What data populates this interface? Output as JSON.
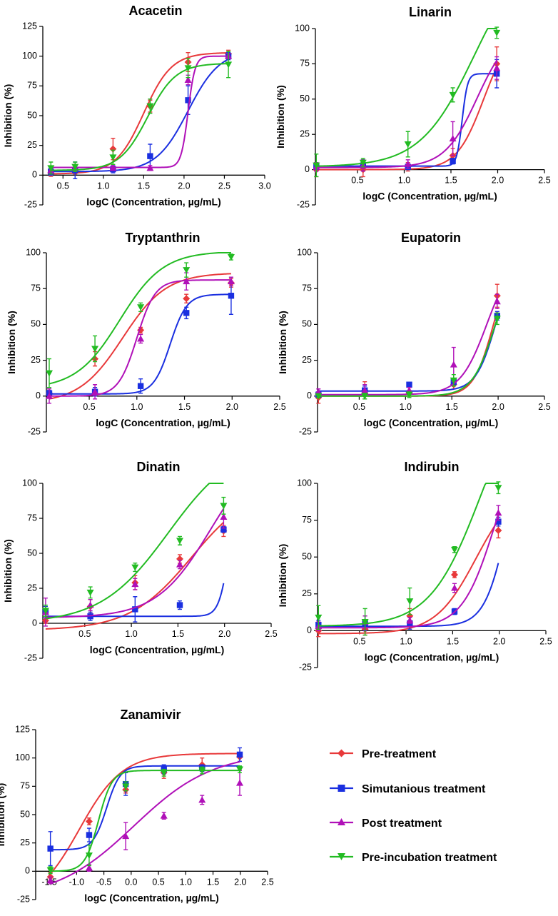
{
  "legend": [
    {
      "key": "pre",
      "label": "Pre-treatment",
      "color": "#e8393a",
      "marker": "diamond"
    },
    {
      "key": "sim",
      "label": "Simutanious treatment",
      "color": "#1a2fe0",
      "marker": "square"
    },
    {
      "key": "post",
      "label": "Post treatment",
      "color": "#b010b8",
      "marker": "triangle-up"
    },
    {
      "key": "preinc",
      "label": "Pre-incubation treatment",
      "color": "#22bb22",
      "marker": "triangle-down"
    }
  ],
  "chart_data": [
    {
      "type": "scatter",
      "fit": "sigmoid",
      "title": "Acacetin",
      "xlabel": "logC (Concentration, µg/mL)",
      "ylabel": "Inhibition (%)",
      "xlim": [
        0.25,
        3.0
      ],
      "ylim": [
        -25,
        125
      ],
      "xticks": [
        0.5,
        1.0,
        1.5,
        2.0,
        2.5,
        3.0
      ],
      "xtick_labels": [
        "0.5",
        "1.0",
        "1.5",
        "2.0",
        "2.5",
        "3.0"
      ],
      "yticks": [
        -25,
        0,
        25,
        50,
        75,
        100,
        125
      ],
      "ytick_labels": [
        "-25",
        "0",
        "25",
        "50",
        "75",
        "100",
        "125"
      ],
      "x": [
        0.35,
        0.65,
        1.12,
        1.58,
        2.05,
        2.55
      ],
      "series": [
        {
          "name": "Pre-treatment",
          "values": [
            2,
            5,
            22,
            58,
            95,
            102
          ],
          "errors": [
            3,
            4,
            9,
            5,
            8,
            3
          ],
          "fit": {
            "bottom": 1,
            "top": 103,
            "logec50": 1.5,
            "hill": 2.5
          }
        },
        {
          "name": "Simutanious treatment",
          "values": [
            3,
            4,
            5,
            16,
            63,
            100
          ],
          "errors": [
            3,
            7,
            3,
            10,
            12,
            3
          ],
          "fit": {
            "bottom": 3,
            "top": 105,
            "logec50": 2.05,
            "hill": 2.2
          }
        },
        {
          "name": "Post treatment",
          "values": [
            4,
            6,
            6,
            6,
            80,
            100
          ],
          "errors": [
            2,
            2,
            2,
            2,
            4,
            2
          ],
          "fit": {
            "bottom": 6.5,
            "top": 100,
            "logec50": 2.05,
            "hill": 10
          }
        },
        {
          "name": "Pre-incubation treatment",
          "values": [
            6,
            7,
            15,
            58,
            90,
            93
          ],
          "errors": [
            5,
            4,
            6,
            6,
            8,
            11
          ],
          "fit": {
            "bottom": 4,
            "top": 94,
            "logec50": 1.55,
            "hill": 2.5
          }
        }
      ]
    },
    {
      "type": "scatter",
      "fit": "sigmoid",
      "title": "Linarin",
      "xlabel": "logC (Concentration, µg/mL)",
      "ylabel": "Inhibition (%)",
      "xlim": [
        0.05,
        2.5
      ],
      "ylim": [
        -25,
        100
      ],
      "xticks": [
        0.5,
        1.0,
        1.5,
        2.0,
        2.5
      ],
      "xtick_labels": [
        "0.5",
        "1.0",
        "1.5",
        "2.0",
        "2.5"
      ],
      "yticks": [
        -25,
        0,
        25,
        50,
        75,
        100
      ],
      "ytick_labels": [
        "-25",
        "0",
        "25",
        "50",
        "75",
        "100"
      ],
      "x": [
        0.06,
        0.56,
        1.04,
        1.52,
        1.99
      ],
      "series": [
        {
          "name": "Pre-treatment",
          "values": [
            0,
            0,
            2,
            10,
            75
          ],
          "errors": [
            5,
            5,
            3,
            5,
            12
          ],
          "fit": {
            "bottom": 0,
            "top": 100,
            "logec50": 1.85,
            "hill": 3
          }
        },
        {
          "name": "Simutanious treatment",
          "values": [
            2,
            3,
            2,
            6,
            68
          ],
          "errors": [
            3,
            4,
            2,
            2,
            10
          ],
          "fit": {
            "bottom": 2.5,
            "top": 68,
            "logec50": 1.62,
            "hill": 15
          }
        },
        {
          "name": "Post treatment",
          "values": [
            2,
            3,
            4,
            22,
            72
          ],
          "errors": [
            3,
            4,
            3,
            12,
            8
          ],
          "fit": {
            "bottom": 1.5,
            "top": 100,
            "logec50": 1.78,
            "hill": 2.5
          }
        },
        {
          "name": "Pre-incubation treatment",
          "values": [
            3,
            5,
            18,
            53,
            97
          ],
          "errors": [
            8,
            3,
            9,
            5,
            4
          ],
          "fit": {
            "bottom": 2,
            "top": 160,
            "logec50": 1.75,
            "hill": 1.5
          }
        }
      ]
    },
    {
      "type": "scatter",
      "fit": "sigmoid",
      "title": "Tryptanthrin",
      "xlabel": "logC (Concentration, µg/mL)",
      "ylabel": "Inhibition (%)",
      "xlim": [
        0.05,
        2.5
      ],
      "ylim": [
        -25,
        100
      ],
      "xticks": [
        0.5,
        1.0,
        1.5,
        2.0,
        2.5
      ],
      "xtick_labels": [
        "0.5",
        "1.0",
        "1.5",
        "2.0",
        "2.5"
      ],
      "yticks": [
        -25,
        0,
        25,
        50,
        75,
        100
      ],
      "ytick_labels": [
        "-25",
        "0",
        "25",
        "50",
        "75",
        "100"
      ],
      "x": [
        0.08,
        0.56,
        1.04,
        1.52,
        1.99
      ],
      "series": [
        {
          "name": "Pre-treatment",
          "values": [
            2,
            26,
            46,
            68,
            79
          ],
          "errors": [
            3,
            5,
            2,
            3,
            3
          ],
          "fit": {
            "bottom": -5,
            "top": 86,
            "logec50": 0.85,
            "hill": 1.9
          }
        },
        {
          "name": "Simutanious treatment",
          "values": [
            2,
            3,
            7,
            58,
            70
          ],
          "errors": [
            2,
            3,
            5,
            4,
            13
          ],
          "fit": {
            "bottom": 1.5,
            "top": 71,
            "logec50": 1.35,
            "hill": 5
          }
        },
        {
          "name": "Post treatment",
          "values": [
            0,
            3,
            40,
            80,
            80
          ],
          "errors": [
            5,
            5,
            3,
            6,
            3
          ],
          "fit": {
            "bottom": 0,
            "top": 81,
            "logec50": 1.0,
            "hill": 4.5
          }
        },
        {
          "name": "Pre-incubation treatment",
          "values": [
            16,
            33,
            62,
            88,
            97
          ],
          "errors": [
            10,
            9,
            3,
            5,
            2
          ],
          "fit": {
            "bottom": 5,
            "top": 101,
            "logec50": 0.82,
            "hill": 1.9
          }
        }
      ]
    },
    {
      "type": "scatter",
      "fit": "sigmoid",
      "title": "Eupatorin",
      "xlabel": "logC (Concentration, µg/mL)",
      "ylabel": "Inhibition (%)",
      "xlim": [
        0.05,
        2.5
      ],
      "ylim": [
        -25,
        100
      ],
      "xticks": [
        0.5,
        1.0,
        1.5,
        2.0,
        2.5
      ],
      "xtick_labels": [
        "0.5",
        "1.0",
        "1.5",
        "2.0",
        "2.5"
      ],
      "yticks": [
        -25,
        0,
        25,
        50,
        75,
        100
      ],
      "ytick_labels": [
        "-25",
        "0",
        "25",
        "50",
        "75",
        "100"
      ],
      "x": [
        0.06,
        0.56,
        1.04,
        1.52,
        1.99
      ],
      "series": [
        {
          "name": "Pre-treatment",
          "values": [
            -1,
            4,
            2,
            8,
            70
          ],
          "errors": [
            4,
            6,
            2,
            3,
            8
          ],
          "fit": {
            "bottom": 0,
            "top": 100,
            "logec50": 1.95,
            "hill": 4
          }
        },
        {
          "name": "Simutanious treatment",
          "values": [
            1,
            4,
            8,
            10,
            56
          ],
          "errors": [
            2,
            3,
            1,
            2,
            3
          ],
          "fit": {
            "bottom": 3.5,
            "top": 100,
            "logec50": 1.98,
            "hill": 4
          }
        },
        {
          "name": "Post treatment",
          "values": [
            3,
            4,
            4,
            22,
            66
          ],
          "errors": [
            2,
            4,
            2,
            12,
            5
          ],
          "fit": {
            "bottom": 1,
            "top": 100,
            "logec50": 1.88,
            "hill": 3
          }
        },
        {
          "name": "Pre-incubation treatment",
          "values": [
            0,
            0,
            1,
            11,
            54
          ],
          "errors": [
            1,
            2,
            2,
            4,
            4
          ],
          "fit": {
            "bottom": 0,
            "top": 100,
            "logec50": 1.97,
            "hill": 3.5
          }
        }
      ]
    },
    {
      "type": "scatter",
      "fit": "sigmoid",
      "title": "Dinatin",
      "xlabel": "logC (Concentration, µg/mL)",
      "ylabel": "Inhibition (%)",
      "xlim": [
        0.05,
        2.5
      ],
      "ylim": [
        -25,
        100
      ],
      "xticks": [
        0.5,
        1.0,
        1.5,
        2.0,
        2.5
      ],
      "xtick_labels": [
        "0.5",
        "1.0",
        "1.5",
        "2.0",
        "2.5"
      ],
      "yticks": [
        -25,
        0,
        25,
        50,
        75,
        100
      ],
      "ytick_labels": [
        "-25",
        "0",
        "25",
        "50",
        "75",
        "100"
      ],
      "x": [
        0.08,
        0.56,
        1.04,
        1.52,
        1.99
      ],
      "series": [
        {
          "name": "Pre-treatment",
          "values": [
            2,
            12,
            29,
            46,
            66
          ],
          "errors": [
            2,
            5,
            5,
            3,
            4
          ],
          "fit": {
            "bottom": -5,
            "top": 100,
            "logec50": 1.65,
            "hill": 1.3
          }
        },
        {
          "name": "Simutanious treatment",
          "values": [
            8,
            5,
            10,
            13,
            67
          ],
          "errors": [
            4,
            3,
            9,
            3,
            2
          ],
          "fit": {
            "bottom": 5,
            "top": 100,
            "logec50": 2.05,
            "hill": 8
          }
        },
        {
          "name": "Post treatment",
          "values": [
            8,
            13,
            28,
            42,
            76
          ],
          "errors": [
            10,
            4,
            4,
            3,
            8
          ],
          "fit": {
            "bottom": 4,
            "top": 130,
            "logec50": 1.85,
            "hill": 1.5
          }
        },
        {
          "name": "Pre-incubation treatment",
          "values": [
            9,
            22,
            40,
            59,
            84
          ],
          "errors": [
            4,
            4,
            3,
            3,
            6
          ],
          "fit": {
            "bottom": 0,
            "top": 130,
            "logec50": 1.4,
            "hill": 1.2
          }
        }
      ]
    },
    {
      "type": "scatter",
      "fit": "sigmoid",
      "title": "Indirubin",
      "xlabel": "logC (Concentration, µg/mL)",
      "ylabel": "Inhibition (%)",
      "xlim": [
        0.05,
        2.5
      ],
      "ylim": [
        -25,
        100
      ],
      "xticks": [
        0.5,
        1.0,
        1.5,
        2.0,
        2.5
      ],
      "xtick_labels": [
        "0.5",
        "1.0",
        "1.5",
        "2.0",
        "2.5"
      ],
      "yticks": [
        -25,
        0,
        25,
        50,
        75,
        100
      ],
      "ytick_labels": [
        "-25",
        "0",
        "25",
        "50",
        "75",
        "100"
      ],
      "x": [
        0.06,
        0.56,
        1.04,
        1.52,
        1.99
      ],
      "series": [
        {
          "name": "Pre-treatment",
          "values": [
            0,
            1,
            10,
            38,
            68
          ],
          "errors": [
            4,
            4,
            5,
            2,
            5
          ],
          "fit": {
            "bottom": -2,
            "top": 100,
            "logec50": 1.75,
            "hill": 2
          }
        },
        {
          "name": "Simutanious treatment",
          "values": [
            4,
            5,
            5,
            13,
            74
          ],
          "errors": [
            3,
            5,
            4,
            2,
            3
          ],
          "fit": {
            "bottom": 3,
            "top": 150,
            "logec50": 2.1,
            "hill": 3.5
          }
        },
        {
          "name": "Post treatment",
          "values": [
            3,
            6,
            7,
            29,
            80
          ],
          "errors": [
            3,
            4,
            2,
            3,
            5
          ],
          "fit": {
            "bottom": 2,
            "top": 140,
            "logec50": 1.95,
            "hill": 2.5
          }
        },
        {
          "name": "Pre-incubation treatment",
          "values": [
            9,
            6,
            20,
            55,
            97
          ],
          "errors": [
            8,
            9,
            9,
            2,
            4
          ],
          "fit": {
            "bottom": 3,
            "top": 180,
            "logec50": 1.8,
            "hill": 1.6
          }
        }
      ]
    },
    {
      "type": "scatter",
      "fit": "sigmoid",
      "title": "Zanamivir",
      "xlabel": "logC (Concentration, µg/mL)",
      "ylabel": "Inhibition (%)",
      "xlim": [
        -1.75,
        2.5
      ],
      "ylim": [
        -25,
        125
      ],
      "xticks": [
        -1.5,
        -1.0,
        -0.5,
        0.0,
        0.5,
        1.0,
        1.5,
        2.0,
        2.5
      ],
      "xtick_labels": [
        "-1.5",
        "-1.0",
        "-0.5",
        "0.0",
        "0.5",
        "1.0",
        "1.5",
        "2.0",
        "2.5"
      ],
      "yticks": [
        -25,
        0,
        25,
        50,
        75,
        100,
        125
      ],
      "ytick_labels": [
        "-25",
        "0",
        "25",
        "50",
        "75",
        "100",
        "125"
      ],
      "x": [
        -1.48,
        -0.77,
        -0.1,
        0.6,
        1.3,
        1.99
      ],
      "series": [
        {
          "name": "Pre-treatment",
          "values": [
            -5,
            44,
            72,
            87,
            94,
            101
          ],
          "errors": [
            4,
            3,
            3,
            5,
            6,
            4
          ],
          "fit": {
            "bottom": -30,
            "top": 104,
            "logec50": -0.95,
            "hill": 1.1
          }
        },
        {
          "name": "Simutanious treatment",
          "values": [
            20,
            32,
            77,
            90,
            91,
            103
          ],
          "errors": [
            15,
            6,
            10,
            4,
            3,
            6
          ],
          "fit": {
            "bottom": 19,
            "top": 93,
            "logec50": -0.45,
            "hill": 3.5
          }
        },
        {
          "name": "Post treatment",
          "values": [
            -8,
            3,
            31,
            49,
            63,
            78
          ],
          "errors": [
            3,
            3,
            12,
            3,
            4,
            11
          ],
          "fit": {
            "bottom": -25,
            "top": 105,
            "logec50": 0.05,
            "hill": 0.6
          }
        },
        {
          "name": "Pre-incubation treatment",
          "values": [
            1,
            14,
            75,
            87,
            89,
            90
          ],
          "errors": [
            3,
            9,
            4,
            3,
            3,
            3
          ],
          "fit": {
            "bottom": 0,
            "top": 89,
            "logec50": -0.6,
            "hill": 3.5
          }
        }
      ]
    }
  ]
}
